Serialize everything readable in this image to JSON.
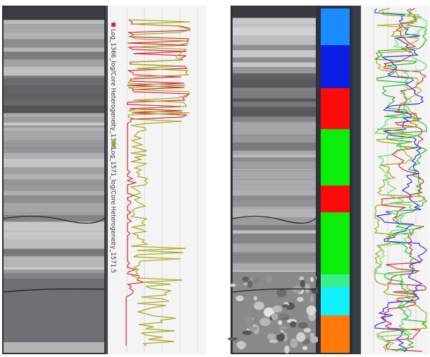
{
  "legend": {
    "items": [
      {
        "label": "Log_1366_log/Core Heterogeneity_1366",
        "color": "#d62b3a"
      },
      {
        "label": "Log_1571_log/Core Heterogeneity_1571.5",
        "color": "#a8a81e"
      }
    ]
  }
}
